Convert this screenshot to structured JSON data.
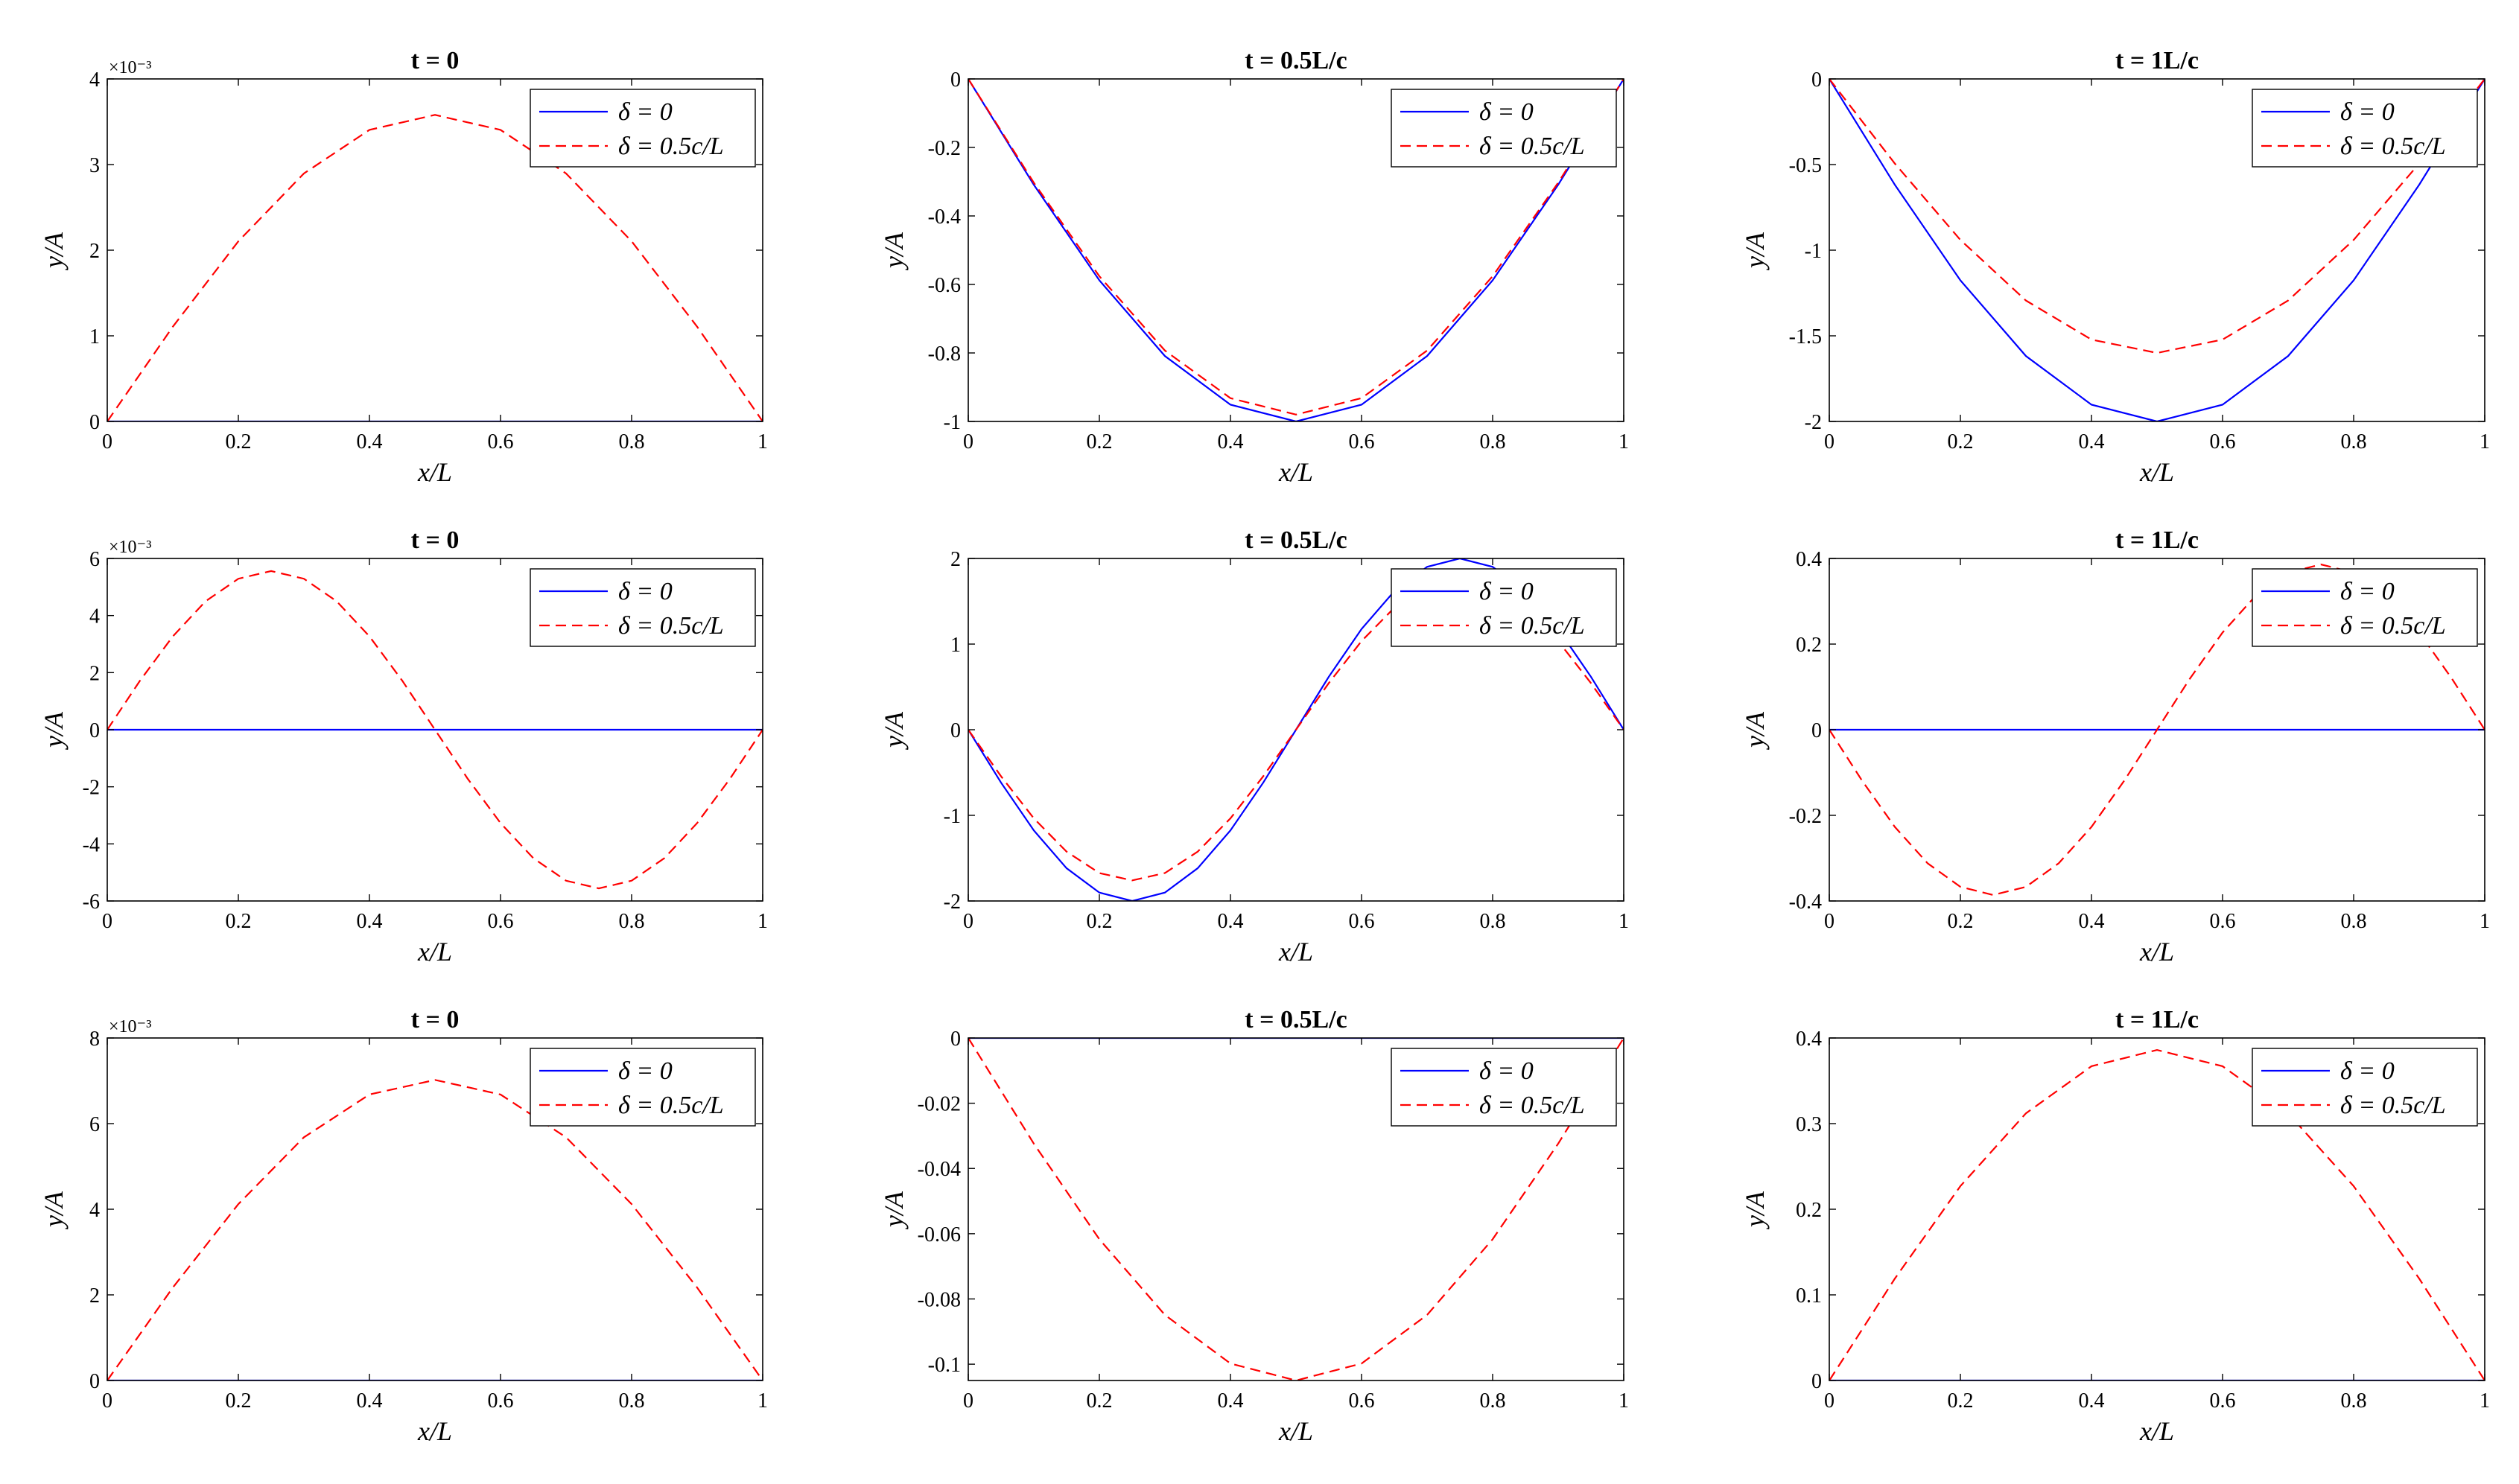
{
  "figure": {
    "background": "#ffffff",
    "series_colors": {
      "delta0": "#0000ff",
      "delta05": "#ff0000"
    }
  },
  "chart_data": [
    {
      "type": "line",
      "row": 1,
      "col": 1,
      "title": "t = 0",
      "xlabel": "x/L",
      "ylabel": "y/A",
      "exponent_label": "×10⁻³",
      "xlim": [
        0,
        1
      ],
      "ylim": [
        0,
        4
      ],
      "xticks": [
        0,
        0.2,
        0.4,
        0.6,
        0.8,
        1
      ],
      "xtick_labels": [
        "0",
        "0.2",
        "0.4",
        "0.6",
        "0.8",
        "1"
      ],
      "yticks": [
        0,
        1,
        2,
        3,
        4
      ],
      "ytick_labels": [
        "0",
        "1",
        "2",
        "3",
        "4"
      ],
      "legend": [
        "δ = 0",
        "δ = 0.5c/L"
      ],
      "legend_position": "top-right",
      "grid": false,
      "series": [
        {
          "name": "δ = 0",
          "style": "solid",
          "color": "#0000ff",
          "x": [
            0,
            0.1,
            0.2,
            0.3,
            0.4,
            0.5,
            0.6,
            0.7,
            0.8,
            0.9,
            1
          ],
          "y": [
            0,
            0,
            0,
            0,
            0,
            0,
            0,
            0,
            0,
            0,
            0
          ]
        },
        {
          "name": "δ = 0.5c/L",
          "style": "dashed",
          "color": "#ff0000",
          "x": [
            0,
            0.1,
            0.2,
            0.3,
            0.4,
            0.5,
            0.6,
            0.7,
            0.8,
            0.9,
            1
          ],
          "y": [
            0,
            1.106,
            2.104,
            2.896,
            3.405,
            3.58,
            3.405,
            2.896,
            2.104,
            1.106,
            0
          ]
        }
      ]
    },
    {
      "type": "line",
      "row": 1,
      "col": 2,
      "title": "t = 0.5L/c",
      "xlabel": "x/L",
      "ylabel": "y/A",
      "exponent_label": "",
      "xlim": [
        0,
        1
      ],
      "ylim": [
        -1,
        0
      ],
      "xticks": [
        0,
        0.2,
        0.4,
        0.6,
        0.8,
        1
      ],
      "xtick_labels": [
        "0",
        "0.2",
        "0.4",
        "0.6",
        "0.8",
        "1"
      ],
      "yticks": [
        -1,
        -0.8,
        -0.6,
        -0.4,
        -0.2,
        0
      ],
      "ytick_labels": [
        "-1",
        "-0.8",
        "-0.6",
        "-0.4",
        "-0.2",
        "0"
      ],
      "legend": [
        "δ = 0",
        "δ = 0.5c/L"
      ],
      "legend_position": "top-right",
      "grid": false,
      "series": [
        {
          "name": "δ = 0",
          "style": "solid",
          "color": "#0000ff",
          "x": [
            0,
            0.1,
            0.2,
            0.3,
            0.4,
            0.5,
            0.6,
            0.7,
            0.8,
            0.9,
            1
          ],
          "y": [
            0,
            -0.309,
            -0.588,
            -0.809,
            -0.951,
            -1,
            -0.951,
            -0.809,
            -0.588,
            -0.309,
            0
          ]
        },
        {
          "name": "δ = 0.5c/L",
          "style": "dashed",
          "color": "#ff0000",
          "x": [
            0,
            0.1,
            0.2,
            0.3,
            0.4,
            0.5,
            0.6,
            0.7,
            0.8,
            0.9,
            1
          ],
          "y": [
            0,
            -0.303,
            -0.576,
            -0.793,
            -0.932,
            -0.98,
            -0.932,
            -0.793,
            -0.576,
            -0.303,
            0
          ]
        }
      ]
    },
    {
      "type": "line",
      "row": 1,
      "col": 3,
      "title": "t = 1L/c",
      "xlabel": "x/L",
      "ylabel": "y/A",
      "exponent_label": "",
      "xlim": [
        0,
        1
      ],
      "ylim": [
        -2,
        0
      ],
      "xticks": [
        0,
        0.2,
        0.4,
        0.6,
        0.8,
        1
      ],
      "xtick_labels": [
        "0",
        "0.2",
        "0.4",
        "0.6",
        "0.8",
        "1"
      ],
      "yticks": [
        -2,
        -1.5,
        -1,
        -0.5,
        0
      ],
      "ytick_labels": [
        "-2",
        "-1.5",
        "-1",
        "-0.5",
        "0"
      ],
      "legend": [
        "δ = 0",
        "δ = 0.5c/L"
      ],
      "legend_position": "top-right",
      "grid": false,
      "series": [
        {
          "name": "δ = 0",
          "style": "solid",
          "color": "#0000ff",
          "x": [
            0,
            0.1,
            0.2,
            0.3,
            0.4,
            0.5,
            0.6,
            0.7,
            0.8,
            0.9,
            1
          ],
          "y": [
            0,
            -0.618,
            -1.176,
            -1.618,
            -1.902,
            -2,
            -1.902,
            -1.618,
            -1.176,
            -0.618,
            0
          ]
        },
        {
          "name": "δ = 0.5c/L",
          "style": "dashed",
          "color": "#ff0000",
          "x": [
            0,
            0.1,
            0.2,
            0.3,
            0.4,
            0.5,
            0.6,
            0.7,
            0.8,
            0.9,
            1
          ],
          "y": [
            0,
            -0.494,
            -0.94,
            -1.294,
            -1.522,
            -1.6,
            -1.522,
            -1.294,
            -0.94,
            -0.494,
            0
          ]
        }
      ]
    },
    {
      "type": "line",
      "row": 2,
      "col": 1,
      "title": "t = 0",
      "xlabel": "x/L",
      "ylabel": "y/A",
      "exponent_label": "×10⁻³",
      "xlim": [
        0,
        1
      ],
      "ylim": [
        -6,
        6
      ],
      "xticks": [
        0,
        0.2,
        0.4,
        0.6,
        0.8,
        1
      ],
      "xtick_labels": [
        "0",
        "0.2",
        "0.4",
        "0.6",
        "0.8",
        "1"
      ],
      "yticks": [
        -6,
        -4,
        -2,
        0,
        2,
        4,
        6
      ],
      "ytick_labels": [
        "-6",
        "-4",
        "-2",
        "0",
        "2",
        "4",
        "6"
      ],
      "legend": [
        "δ = 0",
        "δ = 0.5c/L"
      ],
      "legend_position": "top-right",
      "grid": false,
      "series": [
        {
          "name": "δ = 0",
          "style": "solid",
          "color": "#0000ff",
          "x": [
            0,
            0.1,
            0.2,
            0.3,
            0.4,
            0.5,
            0.6,
            0.7,
            0.8,
            0.9,
            1
          ],
          "y": [
            0,
            0,
            0,
            0,
            0,
            0,
            0,
            0,
            0,
            0,
            0
          ]
        },
        {
          "name": "δ = 0.5c/L",
          "style": "dashed",
          "color": "#ff0000",
          "x": [
            0,
            0.05,
            0.1,
            0.15,
            0.2,
            0.25,
            0.3,
            0.35,
            0.4,
            0.45,
            0.5,
            0.55,
            0.6,
            0.65,
            0.7,
            0.75,
            0.8,
            0.85,
            0.9,
            0.95,
            1
          ],
          "y": [
            0,
            1.72,
            3.27,
            4.5,
            5.29,
            5.56,
            5.29,
            4.5,
            3.27,
            1.72,
            0,
            -1.72,
            -3.27,
            -4.5,
            -5.29,
            -5.56,
            -5.29,
            -4.5,
            -3.27,
            -1.72,
            0
          ]
        }
      ]
    },
    {
      "type": "line",
      "row": 2,
      "col": 2,
      "title": "t = 0.5L/c",
      "xlabel": "x/L",
      "ylabel": "y/A",
      "exponent_label": "",
      "xlim": [
        0,
        1
      ],
      "ylim": [
        -2,
        2
      ],
      "xticks": [
        0,
        0.2,
        0.4,
        0.6,
        0.8,
        1
      ],
      "xtick_labels": [
        "0",
        "0.2",
        "0.4",
        "0.6",
        "0.8",
        "1"
      ],
      "yticks": [
        -2,
        -1,
        0,
        1,
        2
      ],
      "ytick_labels": [
        "-2",
        "-1",
        "0",
        "1",
        "2"
      ],
      "legend": [
        "δ = 0",
        "δ = 0.5c/L"
      ],
      "legend_position": "top-right",
      "grid": false,
      "series": [
        {
          "name": "δ = 0",
          "style": "solid",
          "color": "#0000ff",
          "x": [
            0,
            0.05,
            0.1,
            0.15,
            0.2,
            0.25,
            0.3,
            0.35,
            0.4,
            0.45,
            0.5,
            0.55,
            0.6,
            0.65,
            0.7,
            0.75,
            0.8,
            0.85,
            0.9,
            0.95,
            1
          ],
          "y": [
            0,
            -0.618,
            -1.176,
            -1.618,
            -1.902,
            -2,
            -1.902,
            -1.618,
            -1.176,
            -0.618,
            0,
            0.618,
            1.176,
            1.618,
            1.902,
            2,
            1.902,
            1.618,
            1.176,
            0.618,
            0
          ]
        },
        {
          "name": "δ = 0.5c/L",
          "style": "dashed",
          "color": "#ff0000",
          "x": [
            0,
            0.05,
            0.1,
            0.15,
            0.2,
            0.25,
            0.3,
            0.35,
            0.4,
            0.45,
            0.5,
            0.55,
            0.6,
            0.65,
            0.7,
            0.75,
            0.8,
            0.85,
            0.9,
            0.95,
            1
          ],
          "y": [
            0,
            -0.544,
            -1.035,
            -1.424,
            -1.674,
            -1.76,
            -1.674,
            -1.424,
            -1.035,
            -0.544,
            0,
            0.544,
            1.035,
            1.424,
            1.674,
            1.76,
            1.674,
            1.424,
            1.035,
            0.544,
            0
          ]
        }
      ]
    },
    {
      "type": "line",
      "row": 2,
      "col": 3,
      "title": "t = 1L/c",
      "xlabel": "x/L",
      "ylabel": "y/A",
      "exponent_label": "",
      "xlim": [
        0,
        1
      ],
      "ylim": [
        -0.4,
        0.4
      ],
      "xticks": [
        0,
        0.2,
        0.4,
        0.6,
        0.8,
        1
      ],
      "xtick_labels": [
        "0",
        "0.2",
        "0.4",
        "0.6",
        "0.8",
        "1"
      ],
      "yticks": [
        -0.4,
        -0.2,
        0,
        0.2,
        0.4
      ],
      "ytick_labels": [
        "-0.4",
        "-0.2",
        "0",
        "0.2",
        "0.4"
      ],
      "legend": [
        "δ = 0",
        "δ = 0.5c/L"
      ],
      "legend_position": "top-right",
      "grid": false,
      "series": [
        {
          "name": "δ = 0",
          "style": "solid",
          "color": "#0000ff",
          "x": [
            0,
            0.1,
            0.2,
            0.3,
            0.4,
            0.5,
            0.6,
            0.7,
            0.8,
            0.9,
            1
          ],
          "y": [
            0,
            0,
            0,
            0,
            0,
            0,
            0,
            0,
            0,
            0,
            0
          ]
        },
        {
          "name": "δ = 0.5c/L",
          "style": "dashed",
          "color": "#ff0000",
          "x": [
            0,
            0.05,
            0.1,
            0.15,
            0.2,
            0.25,
            0.3,
            0.35,
            0.4,
            0.45,
            0.5,
            0.55,
            0.6,
            0.65,
            0.7,
            0.75,
            0.8,
            0.85,
            0.9,
            0.95,
            1
          ],
          "y": [
            0,
            -0.119,
            -0.227,
            -0.312,
            -0.367,
            -0.386,
            -0.367,
            -0.312,
            -0.227,
            -0.119,
            0,
            0.119,
            0.227,
            0.312,
            0.367,
            0.386,
            0.367,
            0.312,
            0.227,
            0.119,
            0
          ]
        }
      ]
    },
    {
      "type": "line",
      "row": 3,
      "col": 1,
      "title": "t = 0",
      "xlabel": "x/L",
      "ylabel": "y/A",
      "exponent_label": "×10⁻³",
      "xlim": [
        0,
        1
      ],
      "ylim": [
        0,
        8
      ],
      "xticks": [
        0,
        0.2,
        0.4,
        0.6,
        0.8,
        1
      ],
      "xtick_labels": [
        "0",
        "0.2",
        "0.4",
        "0.6",
        "0.8",
        "1"
      ],
      "yticks": [
        0,
        2,
        4,
        6,
        8
      ],
      "ytick_labels": [
        "0",
        "2",
        "4",
        "6",
        "8"
      ],
      "legend": [
        "δ = 0",
        "δ = 0.5c/L"
      ],
      "legend_position": "top-right",
      "grid": false,
      "series": [
        {
          "name": "δ = 0",
          "style": "solid",
          "color": "#0000ff",
          "x": [
            0,
            0.1,
            0.2,
            0.3,
            0.4,
            0.5,
            0.6,
            0.7,
            0.8,
            0.9,
            1
          ],
          "y": [
            0,
            0,
            0,
            0,
            0,
            0,
            0,
            0,
            0,
            0,
            0
          ]
        },
        {
          "name": "δ = 0.5c/L",
          "style": "dashed",
          "color": "#ff0000",
          "x": [
            0,
            0.1,
            0.2,
            0.3,
            0.4,
            0.5,
            0.6,
            0.7,
            0.8,
            0.9,
            1
          ],
          "y": [
            0,
            2.17,
            4.12,
            5.68,
            6.68,
            7.02,
            6.68,
            5.68,
            4.12,
            2.17,
            0
          ]
        }
      ]
    },
    {
      "type": "line",
      "row": 3,
      "col": 2,
      "title": "t = 0.5L/c",
      "xlabel": "x/L",
      "ylabel": "y/A",
      "exponent_label": "",
      "xlim": [
        0,
        1
      ],
      "ylim": [
        -0.105,
        0
      ],
      "xticks": [
        0,
        0.2,
        0.4,
        0.6,
        0.8,
        1
      ],
      "xtick_labels": [
        "0",
        "0.2",
        "0.4",
        "0.6",
        "0.8",
        "1"
      ],
      "yticks": [
        -0.1,
        -0.08,
        -0.06,
        -0.04,
        -0.02,
        0
      ],
      "ytick_labels": [
        "-0.1",
        "-0.08",
        "-0.06",
        "-0.04",
        "-0.02",
        "0"
      ],
      "legend": [
        "δ = 0",
        "δ = 0.5c/L"
      ],
      "legend_position": "top-right",
      "grid": false,
      "series": [
        {
          "name": "δ = 0",
          "style": "solid",
          "color": "#0000ff",
          "x": [
            0,
            0.1,
            0.2,
            0.3,
            0.4,
            0.5,
            0.6,
            0.7,
            0.8,
            0.9,
            1
          ],
          "y": [
            0,
            0,
            0,
            0,
            0,
            0,
            0,
            0,
            0,
            0,
            0
          ]
        },
        {
          "name": "δ = 0.5c/L",
          "style": "dashed",
          "color": "#ff0000",
          "x": [
            0,
            0.1,
            0.2,
            0.3,
            0.4,
            0.5,
            0.6,
            0.7,
            0.8,
            0.9,
            1
          ],
          "y": [
            0,
            -0.0324,
            -0.0617,
            -0.0849,
            -0.0998,
            -0.105,
            -0.0998,
            -0.0849,
            -0.0617,
            -0.0324,
            0
          ]
        }
      ]
    },
    {
      "type": "line",
      "row": 3,
      "col": 3,
      "title": "t = 1L/c",
      "xlabel": "x/L",
      "ylabel": "y/A",
      "exponent_label": "",
      "xlim": [
        0,
        1
      ],
      "ylim": [
        0,
        0.4
      ],
      "xticks": [
        0,
        0.2,
        0.4,
        0.6,
        0.8,
        1
      ],
      "xtick_labels": [
        "0",
        "0.2",
        "0.4",
        "0.6",
        "0.8",
        "1"
      ],
      "yticks": [
        0,
        0.1,
        0.2,
        0.3,
        0.4
      ],
      "ytick_labels": [
        "0",
        "0.1",
        "0.2",
        "0.3",
        "0.4"
      ],
      "legend": [
        "δ = 0",
        "δ = 0.5c/L"
      ],
      "legend_position": "top-right",
      "grid": false,
      "series": [
        {
          "name": "δ = 0",
          "style": "solid",
          "color": "#0000ff",
          "x": [
            0,
            0.1,
            0.2,
            0.3,
            0.4,
            0.5,
            0.6,
            0.7,
            0.8,
            0.9,
            1
          ],
          "y": [
            0,
            0,
            0,
            0,
            0,
            0,
            0,
            0,
            0,
            0,
            0
          ]
        },
        {
          "name": "δ = 0.5c/L",
          "style": "dashed",
          "color": "#ff0000",
          "x": [
            0,
            0.1,
            0.2,
            0.3,
            0.4,
            0.5,
            0.6,
            0.7,
            0.8,
            0.9,
            1
          ],
          "y": [
            0,
            0.119,
            0.227,
            0.312,
            0.367,
            0.386,
            0.367,
            0.312,
            0.227,
            0.119,
            0
          ]
        }
      ]
    }
  ]
}
